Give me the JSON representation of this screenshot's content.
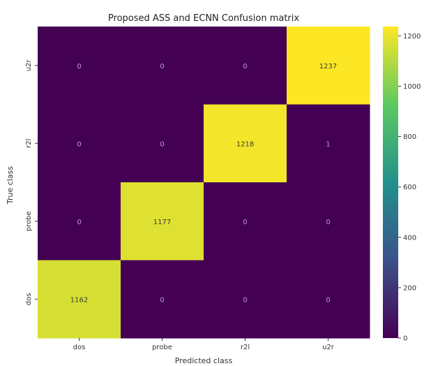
{
  "chart_data": {
    "type": "heatmap",
    "title": "Proposed ASS and ECNN Confusion matrix",
    "xlabel": "Predicted class",
    "ylabel": "True class",
    "x_categories": [
      "dos",
      "probe",
      "r2l",
      "u2r"
    ],
    "y_categories_top_to_bottom": [
      "u2r",
      "r2l",
      "probe",
      "dos"
    ],
    "matrix_rows_top_to_bottom": [
      [
        0,
        0,
        0,
        1237
      ],
      [
        0,
        0,
        1218,
        1
      ],
      [
        0,
        1177,
        0,
        0
      ],
      [
        1162,
        0,
        0,
        0
      ]
    ],
    "colormap": "viridis",
    "color_range": [
      0,
      1237
    ],
    "colorbar_ticks": [
      0,
      200,
      400,
      600,
      800,
      1000,
      1200
    ],
    "grid": false,
    "legend": "colorbar-right",
    "annotation_color_dark_cells": "#bb99dd",
    "annotation_color_light_cells": "#3a3a3a"
  }
}
